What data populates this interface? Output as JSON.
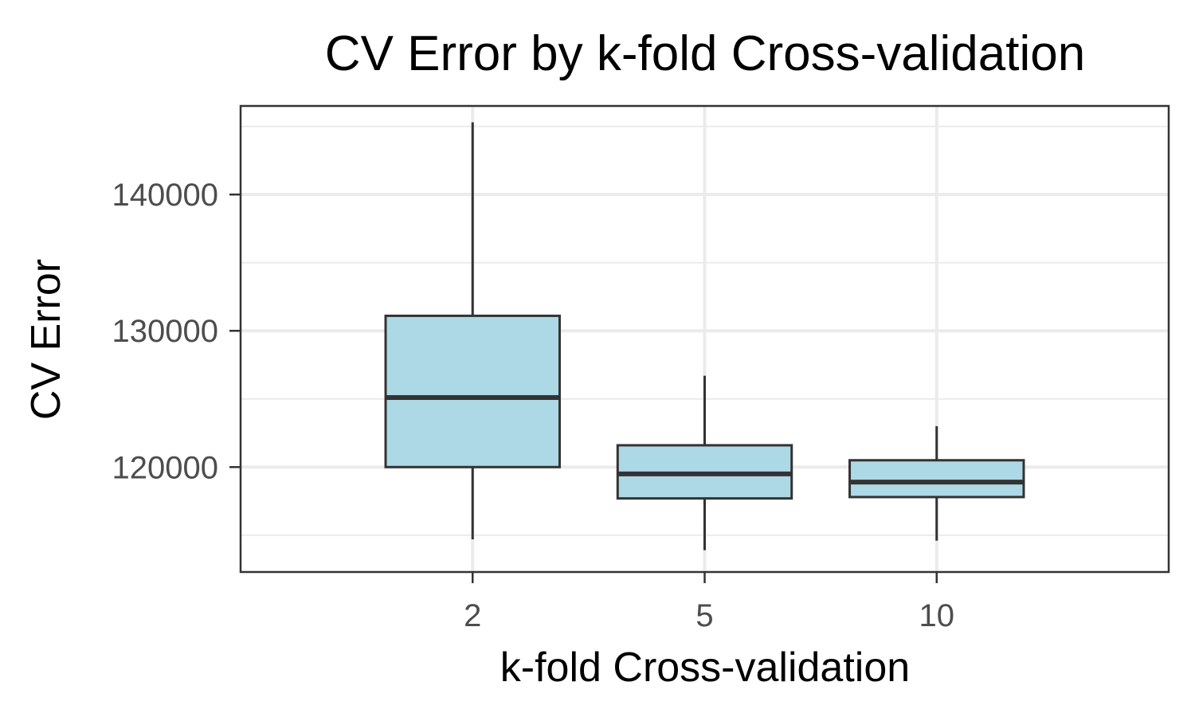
{
  "chart_data": {
    "type": "boxplot",
    "title": "CV Error by k-fold Cross-validation",
    "xlabel": "k-fold Cross-validation",
    "ylabel": "CV Error",
    "categories": [
      "2",
      "5",
      "10"
    ],
    "boxes": [
      {
        "category": "2",
        "min": 114700,
        "q1": 120000,
        "median": 125100,
        "q3": 131100,
        "max": 145300
      },
      {
        "category": "5",
        "min": 113900,
        "q1": 117700,
        "median": 119500,
        "q3": 121600,
        "max": 126700
      },
      {
        "category": "10",
        "min": 114600,
        "q1": 117800,
        "median": 118900,
        "q3": 120500,
        "max": 123000
      }
    ],
    "ylim": [
      112300,
      146500
    ],
    "yticks": [
      120000,
      130000,
      140000
    ],
    "yticks_labels": [
      "120000",
      "130000",
      "140000"
    ],
    "grid": true,
    "box_fill": "#add8e6",
    "line_color": "#333333",
    "grid_color": "#ebebeb"
  }
}
